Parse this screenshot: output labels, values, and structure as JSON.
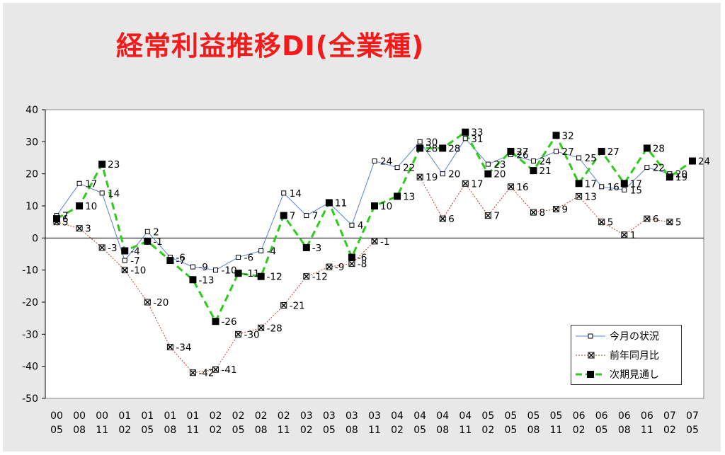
{
  "chart_data": {
    "type": "line",
    "title": "経常利益推移DI(全業種)",
    "ylim": [
      -50,
      40
    ],
    "yticks": [
      40,
      30,
      20,
      10,
      0,
      -10,
      -20,
      -30,
      -40,
      -50
    ],
    "grid": false,
    "legend_position": "bottom-right",
    "categories": [
      [
        "00",
        "05"
      ],
      [
        "00",
        "08"
      ],
      [
        "00",
        "11"
      ],
      [
        "01",
        "02"
      ],
      [
        "01",
        "05"
      ],
      [
        "01",
        "08"
      ],
      [
        "01",
        "11"
      ],
      [
        "02",
        "02"
      ],
      [
        "02",
        "05"
      ],
      [
        "02",
        "08"
      ],
      [
        "02",
        "11"
      ],
      [
        "03",
        "02"
      ],
      [
        "03",
        "05"
      ],
      [
        "03",
        "08"
      ],
      [
        "03",
        "11"
      ],
      [
        "04",
        "02"
      ],
      [
        "04",
        "05"
      ],
      [
        "04",
        "08"
      ],
      [
        "04",
        "11"
      ],
      [
        "05",
        "02"
      ],
      [
        "05",
        "05"
      ],
      [
        "05",
        "08"
      ],
      [
        "05",
        "11"
      ],
      [
        "06",
        "02"
      ],
      [
        "06",
        "05"
      ],
      [
        "06",
        "08"
      ],
      [
        "06",
        "11"
      ],
      [
        "07",
        "02"
      ],
      [
        "07",
        "05"
      ]
    ],
    "series": [
      {
        "name": "今月の状況",
        "color": "#5b7fd6",
        "style": "solid-thin",
        "marker": "open-square",
        "values": [
          7,
          17,
          14,
          -7,
          2,
          -6,
          -9,
          -10,
          -6,
          -4,
          14,
          7,
          11,
          4,
          24,
          22,
          30,
          20,
          31,
          23,
          26,
          24,
          27,
          25,
          16,
          15,
          22,
          20,
          null
        ]
      },
      {
        "name": "前年同月比",
        "color": "#c0392b",
        "style": "dotted",
        "marker": "x-square",
        "values": [
          5,
          3,
          -3,
          -10,
          -20,
          -34,
          -42,
          -41,
          -30,
          -28,
          -21,
          -12,
          -9,
          -8,
          -1,
          null,
          19,
          6,
          17,
          7,
          16,
          8,
          9,
          13,
          5,
          1,
          6,
          5,
          null
        ]
      },
      {
        "name": "次期見通し",
        "color": "#2ecc1a",
        "style": "dashed-thick",
        "marker": "filled-square",
        "values": [
          6,
          10,
          23,
          -4,
          -1,
          -7,
          -13,
          -26,
          -11,
          -12,
          7,
          -3,
          11,
          -6,
          10,
          13,
          28,
          28,
          33,
          20,
          27,
          21,
          32,
          17,
          27,
          17,
          28,
          19,
          24
        ]
      }
    ]
  }
}
